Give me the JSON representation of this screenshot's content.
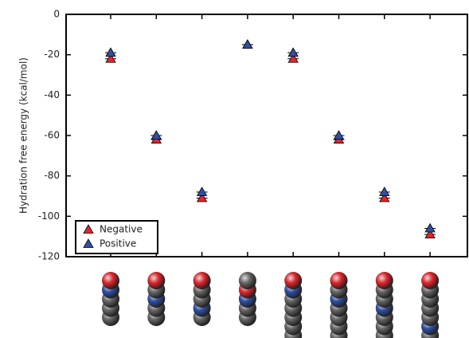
{
  "chart_data": {
    "type": "scatter",
    "y_label": "Hydration free energy (kcal/mol)",
    "categories": [
      null,
      null,
      null,
      null,
      null,
      null,
      null,
      null
    ],
    "series": [
      {
        "name": "Negative",
        "color": "#e3242b",
        "values": [
          -22,
          -62,
          -91,
          -15,
          -22,
          -62,
          -91,
          -109
        ]
      },
      {
        "name": "Positive",
        "color": "#2d4fa6",
        "values": [
          -19,
          -60,
          -88,
          -15,
          -19,
          -60,
          -88,
          -106
        ]
      }
    ],
    "ylim": [
      -120,
      0
    ],
    "yticks": [
      0,
      -20,
      -40,
      -60,
      -80,
      -100,
      -120
    ],
    "legend": "lower-left"
  }
}
